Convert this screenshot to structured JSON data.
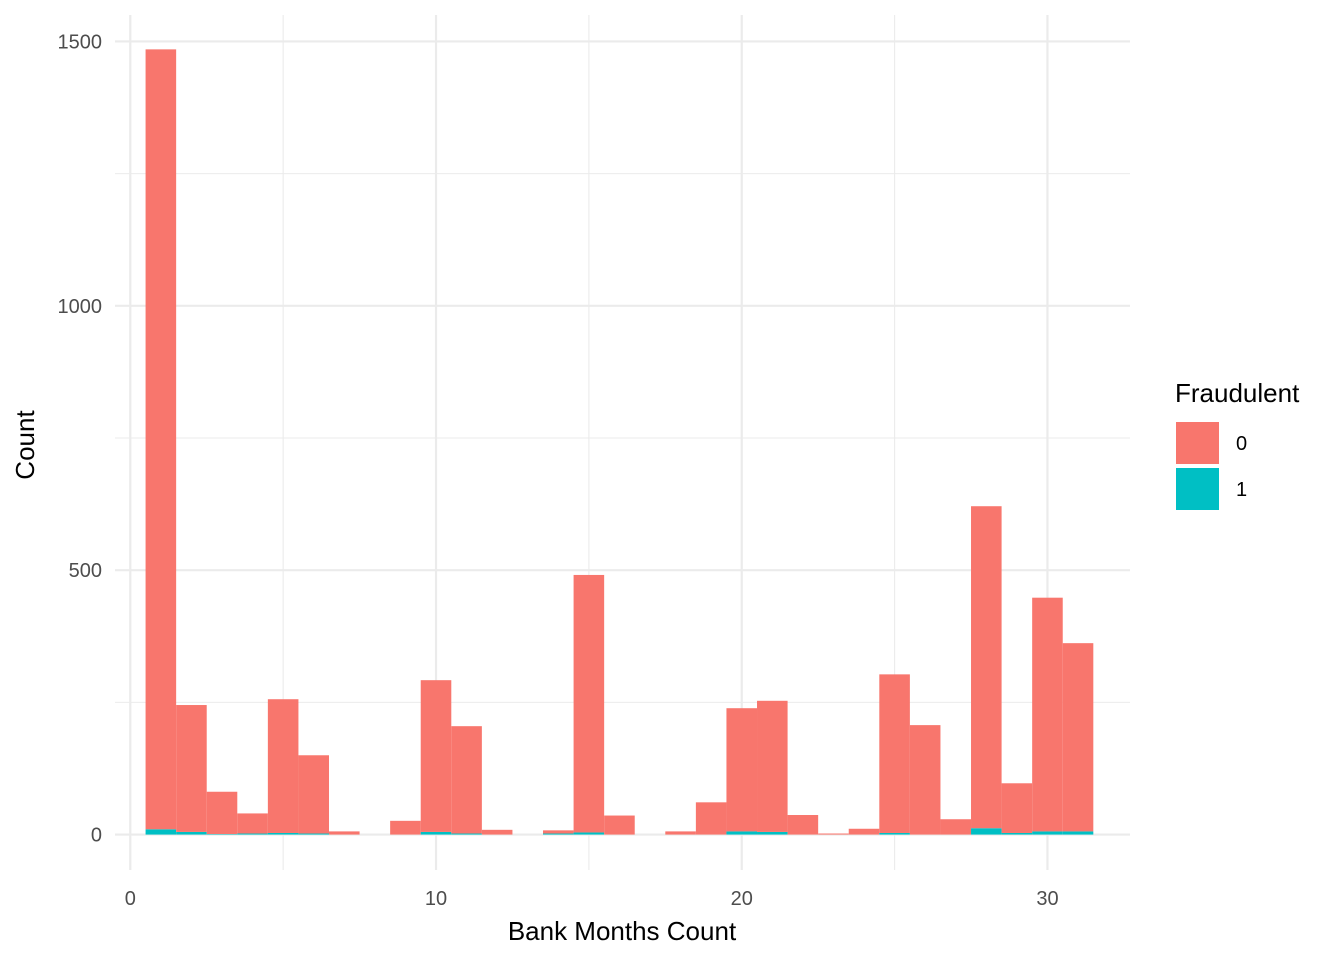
{
  "chart_data": {
    "type": "bar",
    "stacked": true,
    "histogram": true,
    "xlabel": "Bank Months Count",
    "ylabel": "Count",
    "xlim": [
      -0.5,
      32.7
    ],
    "ylim": [
      -67,
      1550
    ],
    "x_ticks": [
      0,
      10,
      20,
      30
    ],
    "y_ticks": [
      0,
      500,
      1000,
      1500
    ],
    "x_minor_ticks": [
      5,
      15,
      25
    ],
    "y_minor_ticks": [
      250,
      750,
      1250
    ],
    "bin_width": 1,
    "x": [
      1,
      2,
      3,
      4,
      5,
      6,
      7,
      8,
      9,
      10,
      11,
      12,
      13,
      14,
      15,
      16,
      17,
      18,
      19,
      20,
      21,
      22,
      23,
      24,
      25,
      26,
      27,
      28,
      29,
      30,
      31
    ],
    "series": [
      {
        "name": "0",
        "color": "#F8766D",
        "values": [
          1475,
          240,
          80,
          38,
          253,
          148,
          6,
          0,
          26,
          287,
          203,
          9,
          0,
          6,
          487,
          36,
          0,
          6,
          61,
          233,
          248,
          37,
          2,
          11,
          300,
          207,
          29,
          609,
          94,
          442,
          356
        ]
      },
      {
        "name": "1",
        "color": "#00BFC4",
        "values": [
          10,
          5,
          1,
          2,
          3,
          2,
          0,
          0,
          0,
          5,
          2,
          0,
          0,
          2,
          4,
          0,
          0,
          0,
          0,
          6,
          5,
          0,
          0,
          0,
          3,
          0,
          0,
          12,
          3,
          6,
          6
        ]
      }
    ],
    "legend": {
      "title": "Fraudulent",
      "position": "right",
      "entries": [
        "0",
        "1"
      ]
    },
    "grid": true
  }
}
